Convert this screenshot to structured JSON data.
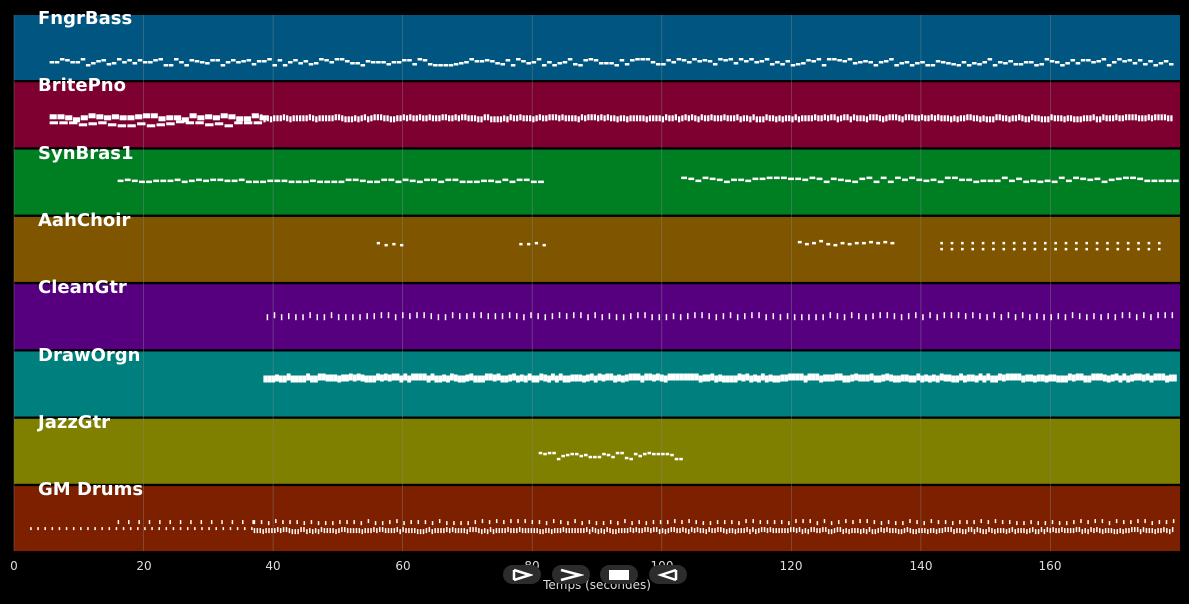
{
  "colors": {
    "background": "#000000",
    "note": "#ffffff",
    "grid": "#8a8a8a"
  },
  "tracks": [
    {
      "name": "FngrBass",
      "color": "#005680",
      "pattern": "bass"
    },
    {
      "name": "BritePno",
      "color": "#7d0030",
      "pattern": "piano"
    },
    {
      "name": "SynBras1",
      "color": "#007f22",
      "pattern": "brass"
    },
    {
      "name": "AahChoir",
      "color": "#7f5500",
      "pattern": "choir"
    },
    {
      "name": "CleanGtr",
      "color": "#560080",
      "pattern": "cleangtr"
    },
    {
      "name": "DrawOrgn",
      "color": "#007f7f",
      "pattern": "organ"
    },
    {
      "name": "JazzGtr",
      "color": "#7f7f00",
      "pattern": "jazz"
    },
    {
      "name": "GM Drums",
      "color": "#7d2000",
      "pattern": "drums"
    }
  ],
  "axis": {
    "xlabel": "Temps (secondes)",
    "ticks": [
      "0",
      "20",
      "40",
      "60",
      "80",
      "100",
      "120",
      "140",
      "160"
    ],
    "tick_values": [
      0,
      20,
      40,
      60,
      80,
      100,
      120,
      140,
      160
    ],
    "xlim": [
      0,
      180
    ]
  },
  "controls": [
    {
      "name": "play-from-start-icon"
    },
    {
      "name": "forward-icon"
    },
    {
      "name": "stop-icon"
    },
    {
      "name": "rewind-icon"
    }
  ]
}
